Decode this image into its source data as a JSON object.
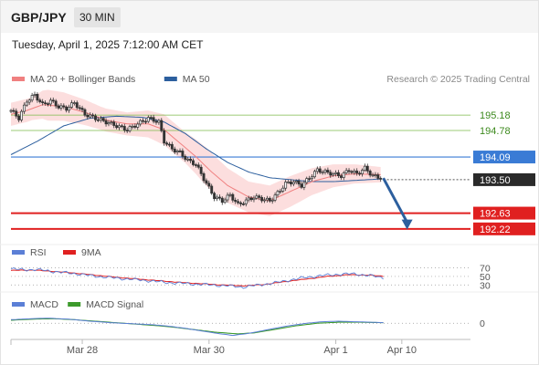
{
  "header": {
    "symbol": "GBP/JPY",
    "timeframe": "30 MIN",
    "timestamp": "Tuesday, April 1, 2025 7:12:00 AM CET"
  },
  "credit": "Research © 2025 Trading Central",
  "colors": {
    "ma20": "#f08080",
    "ma50": "#2c5f9e",
    "band": "#fbd3d3",
    "up": "#333333",
    "down": "#333333",
    "resistance": "#7cba4a",
    "pivot": "#3a7bd5",
    "support": "#e02020",
    "arrow": "#2c5f9e",
    "rsi": "#5b7fd6",
    "rsi9ma": "#e02020",
    "macd": "#5b7fd6",
    "macdSignal": "#3d9a2c"
  },
  "chart_data": [
    {
      "type": "candlestick",
      "legend": [
        {
          "name": "MA 20 + Bollinger Bands",
          "color": "#f08080"
        },
        {
          "name": "MA 50",
          "color": "#2c5f9e"
        }
      ],
      "ylim": [
        192.05,
        195.8
      ],
      "xlim": [
        0,
        174
      ],
      "x_ticks": [
        {
          "x": 27,
          "label": "Mar 28"
        },
        {
          "x": 75,
          "label": "Mar 30"
        },
        {
          "x": 123,
          "label": "Apr 1"
        },
        {
          "x": 148,
          "label": "Apr 10"
        }
      ],
      "levels": [
        {
          "value": 195.18,
          "label": "195.18",
          "kind": "resistance"
        },
        {
          "value": 194.78,
          "label": "194.78",
          "kind": "resistance"
        },
        {
          "value": 194.09,
          "label": "194.09",
          "kind": "pivot"
        },
        {
          "value": 193.5,
          "label": "193.50",
          "kind": "price"
        },
        {
          "value": 192.63,
          "label": "192.63",
          "kind": "support"
        },
        {
          "value": 192.22,
          "label": "192.22",
          "kind": "support"
        }
      ],
      "forecast_arrow": {
        "from": [
          141,
          193.54
        ],
        "to": [
          150,
          192.25
        ]
      },
      "anchors": {
        "close": [
          [
            0,
            195.3
          ],
          [
            3,
            195.1
          ],
          [
            6,
            195.55
          ],
          [
            9,
            195.7
          ],
          [
            12,
            195.45
          ],
          [
            15,
            195.55
          ],
          [
            18,
            195.4
          ],
          [
            21,
            195.35
          ],
          [
            24,
            195.5
          ],
          [
            28,
            195.2
          ],
          [
            32,
            195.1
          ],
          [
            36,
            195.0
          ],
          [
            40,
            194.9
          ],
          [
            44,
            194.8
          ],
          [
            48,
            194.95
          ],
          [
            52,
            195.1
          ],
          [
            56,
            195.0
          ],
          [
            58,
            194.5
          ],
          [
            61,
            194.3
          ],
          [
            64,
            194.2
          ],
          [
            67,
            194.0
          ],
          [
            70,
            193.9
          ],
          [
            74,
            193.4
          ],
          [
            77,
            193.05
          ],
          [
            80,
            192.95
          ],
          [
            83,
            193.1
          ],
          [
            86,
            192.85
          ],
          [
            89,
            192.95
          ],
          [
            92,
            193.05
          ],
          [
            95,
            193.0
          ],
          [
            98,
            192.95
          ],
          [
            101,
            193.15
          ],
          [
            104,
            193.4
          ],
          [
            107,
            193.45
          ],
          [
            110,
            193.35
          ],
          [
            113,
            193.55
          ],
          [
            116,
            193.75
          ],
          [
            119,
            193.7
          ],
          [
            122,
            193.65
          ],
          [
            125,
            193.6
          ],
          [
            128,
            193.75
          ],
          [
            131,
            193.65
          ],
          [
            134,
            193.8
          ],
          [
            137,
            193.6
          ],
          [
            140,
            193.55
          ]
        ],
        "ma20": [
          [
            0,
            195.2
          ],
          [
            6,
            195.3
          ],
          [
            12,
            195.45
          ],
          [
            20,
            195.4
          ],
          [
            28,
            195.25
          ],
          [
            36,
            195.05
          ],
          [
            44,
            194.95
          ],
          [
            52,
            194.95
          ],
          [
            58,
            194.8
          ],
          [
            64,
            194.45
          ],
          [
            70,
            194.1
          ],
          [
            76,
            193.7
          ],
          [
            82,
            193.35
          ],
          [
            90,
            193.05
          ],
          [
            98,
            192.95
          ],
          [
            106,
            193.2
          ],
          [
            114,
            193.45
          ],
          [
            122,
            193.6
          ],
          [
            130,
            193.65
          ],
          [
            140,
            193.63
          ]
        ],
        "ma50": [
          [
            0,
            194.15
          ],
          [
            10,
            194.5
          ],
          [
            20,
            194.9
          ],
          [
            30,
            195.1
          ],
          [
            40,
            195.15
          ],
          [
            50,
            195.12
          ],
          [
            58,
            195.0
          ],
          [
            66,
            194.7
          ],
          [
            74,
            194.3
          ],
          [
            82,
            193.95
          ],
          [
            90,
            193.7
          ],
          [
            98,
            193.55
          ],
          [
            106,
            193.5
          ],
          [
            114,
            193.45
          ],
          [
            122,
            193.45
          ],
          [
            130,
            193.48
          ],
          [
            140,
            193.52
          ]
        ],
        "band_width": [
          [
            0,
            0.3
          ],
          [
            8,
            0.3
          ],
          [
            14,
            0.4
          ],
          [
            24,
            0.35
          ],
          [
            34,
            0.3
          ],
          [
            44,
            0.3
          ],
          [
            52,
            0.35
          ],
          [
            58,
            0.4
          ],
          [
            66,
            0.4
          ],
          [
            74,
            0.5
          ],
          [
            82,
            0.45
          ],
          [
            90,
            0.4
          ],
          [
            98,
            0.4
          ],
          [
            106,
            0.4
          ],
          [
            114,
            0.35
          ],
          [
            122,
            0.3
          ],
          [
            130,
            0.25
          ],
          [
            140,
            0.2
          ]
        ]
      }
    },
    {
      "type": "line",
      "legend": [
        {
          "name": "RSI",
          "color": "#5b7fd6"
        },
        {
          "name": "9MA",
          "color": "#e02020"
        }
      ],
      "ylim": [
        22,
        82
      ],
      "levels": [
        {
          "value": 70,
          "label": "70"
        },
        {
          "value": 50,
          "label": "50"
        },
        {
          "value": 30,
          "label": "30"
        }
      ],
      "anchors": {
        "rsi": [
          [
            0,
            67
          ],
          [
            6,
            66
          ],
          [
            12,
            65
          ],
          [
            18,
            60
          ],
          [
            24,
            57
          ],
          [
            30,
            52
          ],
          [
            36,
            48
          ],
          [
            44,
            44
          ],
          [
            52,
            40
          ],
          [
            58,
            36
          ],
          [
            64,
            34
          ],
          [
            70,
            32
          ],
          [
            76,
            30
          ],
          [
            82,
            28
          ],
          [
            88,
            25
          ],
          [
            94,
            30
          ],
          [
            100,
            35
          ],
          [
            106,
            42
          ],
          [
            112,
            48
          ],
          [
            118,
            52
          ],
          [
            124,
            55
          ],
          [
            130,
            56
          ],
          [
            136,
            52
          ],
          [
            142,
            46
          ]
        ],
        "rsi9ma": [
          [
            0,
            64
          ],
          [
            8,
            65
          ],
          [
            16,
            62
          ],
          [
            24,
            58
          ],
          [
            32,
            53
          ],
          [
            40,
            48
          ],
          [
            48,
            44
          ],
          [
            56,
            40
          ],
          [
            64,
            36
          ],
          [
            72,
            33
          ],
          [
            80,
            30
          ],
          [
            88,
            28
          ],
          [
            96,
            31
          ],
          [
            104,
            38
          ],
          [
            112,
            44
          ],
          [
            120,
            50
          ],
          [
            128,
            54
          ],
          [
            136,
            53
          ],
          [
            142,
            50
          ]
        ]
      }
    },
    {
      "type": "line",
      "legend": [
        {
          "name": "MACD",
          "color": "#5b7fd6"
        },
        {
          "name": "MACD Signal",
          "color": "#3d9a2c"
        }
      ],
      "ylim": [
        -0.32,
        0.22
      ],
      "levels": [
        {
          "value": 0,
          "label": "0"
        }
      ],
      "anchors": {
        "macd": [
          [
            0,
            0.07
          ],
          [
            8,
            0.09
          ],
          [
            14,
            0.1
          ],
          [
            22,
            0.08
          ],
          [
            30,
            0.04
          ],
          [
            38,
            0.01
          ],
          [
            46,
            -0.01
          ],
          [
            54,
            -0.03
          ],
          [
            60,
            -0.06
          ],
          [
            66,
            -0.1
          ],
          [
            72,
            -0.15
          ],
          [
            78,
            -0.2
          ],
          [
            84,
            -0.24
          ],
          [
            90,
            -0.2
          ],
          [
            96,
            -0.14
          ],
          [
            104,
            -0.06
          ],
          [
            112,
            0.0
          ],
          [
            118,
            0.03
          ],
          [
            124,
            0.04
          ],
          [
            130,
            0.03
          ],
          [
            136,
            0.02
          ],
          [
            142,
            0.01
          ]
        ],
        "macdSignal": [
          [
            0,
            0.06
          ],
          [
            8,
            0.08
          ],
          [
            16,
            0.09
          ],
          [
            24,
            0.07
          ],
          [
            32,
            0.04
          ],
          [
            40,
            0.01
          ],
          [
            48,
            -0.02
          ],
          [
            56,
            -0.05
          ],
          [
            62,
            -0.08
          ],
          [
            70,
            -0.13
          ],
          [
            78,
            -0.18
          ],
          [
            86,
            -0.21
          ],
          [
            92,
            -0.19
          ],
          [
            100,
            -0.12
          ],
          [
            108,
            -0.05
          ],
          [
            116,
            0.0
          ],
          [
            124,
            0.02
          ],
          [
            132,
            0.02
          ],
          [
            142,
            0.01
          ]
        ]
      }
    }
  ]
}
